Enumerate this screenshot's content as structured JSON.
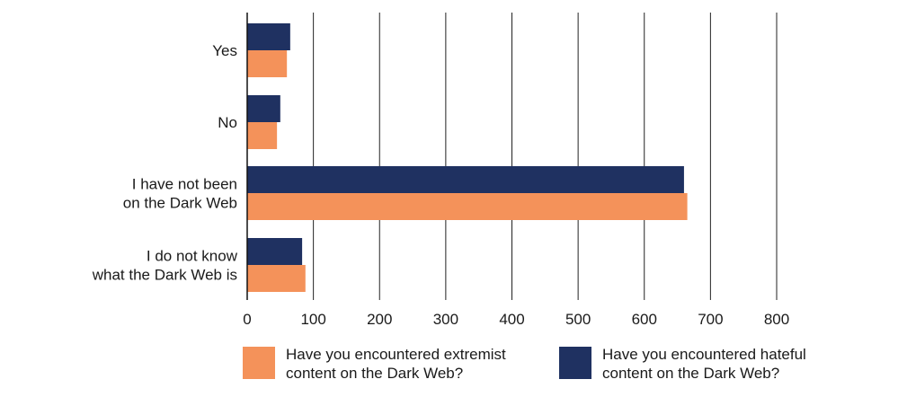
{
  "chart_data": {
    "type": "bar",
    "orientation": "horizontal",
    "categories": [
      "Yes",
      "No",
      "I have not been\non the Dark Web",
      "I do not know\nwhat the Dark Web is"
    ],
    "series": [
      {
        "name": "Have you encountered hateful content on the Dark Web?",
        "color": "#1f3161",
        "values": [
          65,
          50,
          660,
          83
        ]
      },
      {
        "name": "Have you encountered extremist content on the Dark Web?",
        "color": "#f4925a",
        "values": [
          60,
          45,
          665,
          88
        ]
      }
    ],
    "xlim": [
      0,
      800
    ],
    "xticks": [
      "0",
      "100",
      "200",
      "300",
      "400",
      "500",
      "600",
      "700",
      "800"
    ],
    "grid": true,
    "legend_position": "bottom"
  },
  "legend": [
    {
      "text": "Have you encountered extremist\ncontent on the Dark Web?",
      "color": "#f4925a"
    },
    {
      "text": "Have you encountered hateful\ncontent on the Dark Web?",
      "color": "#1f3161"
    }
  ]
}
